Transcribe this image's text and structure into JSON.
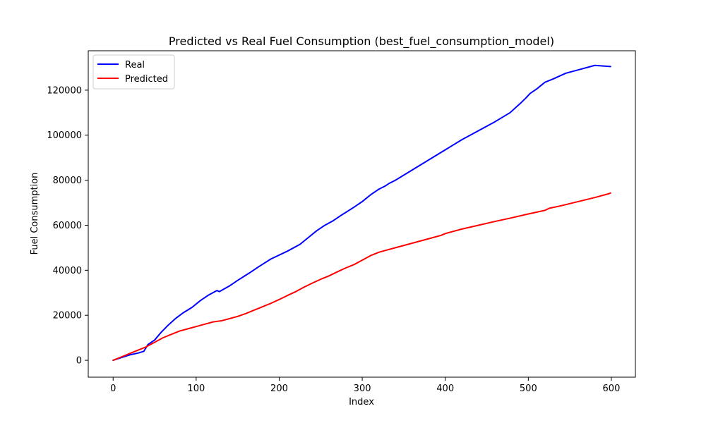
{
  "chart_data": {
    "type": "line",
    "title": "Predicted vs Real Fuel Consumption (best_fuel_consumption_model)",
    "xlabel": "Index",
    "ylabel": "Fuel Consumption",
    "xlim": [
      -29.95,
      628.95
    ],
    "ylim": [
      -7500,
      137500
    ],
    "xticks": [
      0,
      100,
      200,
      300,
      400,
      500,
      600
    ],
    "yticks": [
      0,
      20000,
      40000,
      60000,
      80000,
      100000,
      120000
    ],
    "grid": false,
    "legend": "upper left",
    "series": [
      {
        "name": "Real",
        "color": "#0000ff",
        "x": [
          0,
          10,
          20,
          30,
          37,
          42,
          50,
          58,
          66,
          75,
          84,
          95,
          105,
          115,
          125,
          128,
          140,
          150,
          165,
          175,
          190,
          210,
          225,
          235,
          245,
          255,
          265,
          275,
          290,
          300,
          310,
          320,
          328,
          332,
          340,
          360,
          380,
          400,
          420,
          440,
          460,
          478,
          490,
          497,
          502,
          510,
          520,
          530,
          545,
          565,
          580,
          599
        ],
        "values": [
          0,
          1200,
          2400,
          3200,
          4000,
          7000,
          9000,
          12500,
          15500,
          18500,
          21000,
          23500,
          26500,
          29000,
          31000,
          30500,
          33000,
          35500,
          39000,
          41500,
          45000,
          48500,
          51500,
          54500,
          57500,
          60000,
          62000,
          64500,
          68000,
          70500,
          73500,
          76000,
          77500,
          78500,
          80000,
          84500,
          89000,
          93500,
          98000,
          102000,
          106000,
          110000,
          114000,
          116500,
          118500,
          120500,
          123500,
          125000,
          127500,
          129500,
          131000,
          130500
        ]
      },
      {
        "name": "Predicted",
        "color": "#ff0000",
        "x": [
          0,
          10,
          20,
          30,
          40,
          50,
          60,
          70,
          80,
          90,
          100,
          110,
          120,
          125,
          130,
          140,
          150,
          160,
          170,
          180,
          190,
          200,
          210,
          220,
          230,
          240,
          250,
          260,
          270,
          280,
          290,
          300,
          310,
          320,
          330,
          340,
          360,
          380,
          395,
          400,
          420,
          440,
          460,
          480,
          500,
          520,
          525,
          540,
          560,
          580,
          597,
          599
        ],
        "values": [
          0,
          1500,
          3000,
          4500,
          6000,
          8000,
          10000,
          11500,
          13000,
          14000,
          15000,
          16000,
          17000,
          17300,
          17500,
          18500,
          19500,
          20800,
          22300,
          23800,
          25300,
          27000,
          28800,
          30500,
          32500,
          34300,
          36000,
          37500,
          39300,
          41000,
          42500,
          44500,
          46500,
          48000,
          49000,
          50000,
          52000,
          54000,
          55500,
          56300,
          58300,
          60000,
          61700,
          63300,
          65000,
          66600,
          67500,
          68700,
          70500,
          72300,
          74000,
          74300
        ]
      }
    ]
  }
}
